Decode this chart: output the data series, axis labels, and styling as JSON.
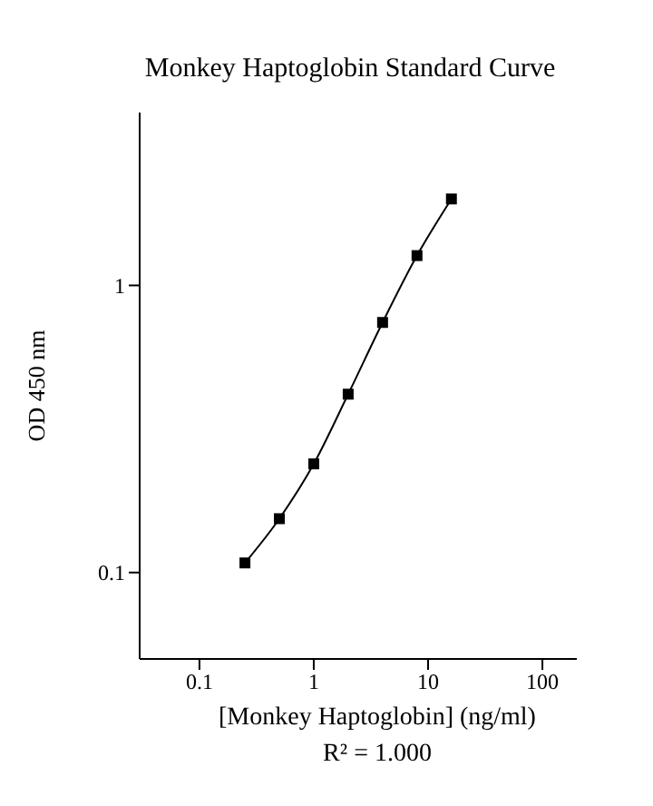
{
  "chart_data": {
    "type": "line",
    "title": "Monkey Haptoglobin Standard Curve",
    "xlabel": "[Monkey Haptoglobin] (ng/ml)",
    "ylabel": "OD 450 nm",
    "annotations": [
      "R² = 1.000"
    ],
    "x": [
      0.25,
      0.5,
      1,
      2,
      4,
      8,
      16
    ],
    "series": [
      {
        "color": "#000000",
        "values": [
          0.108,
          0.154,
          0.239,
          0.418,
          0.743,
          1.27,
          2.0
        ]
      }
    ],
    "log": "xy",
    "xlim": [
      0.03,
      200
    ],
    "xticks": [
      0.1,
      1,
      10,
      100
    ],
    "ylim": [
      0.05,
      4
    ],
    "yticks": [
      0.1,
      1
    ],
    "grid": false,
    "legend": false,
    "marker": "square",
    "line_style": "solid"
  }
}
